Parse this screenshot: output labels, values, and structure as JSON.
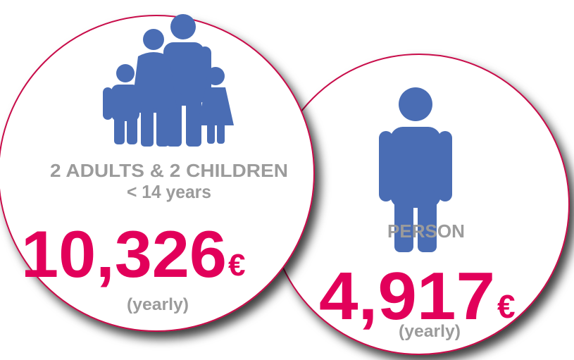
{
  "cards": [
    {
      "label": "2 ADULTS & 2 CHILDREN",
      "sublabel": "< 14 years",
      "amount": "10,326",
      "currency": "€",
      "period": "(yearly)"
    },
    {
      "label": "PERSON",
      "amount": "4,917",
      "currency": "€",
      "period": "(yearly)"
    }
  ]
}
